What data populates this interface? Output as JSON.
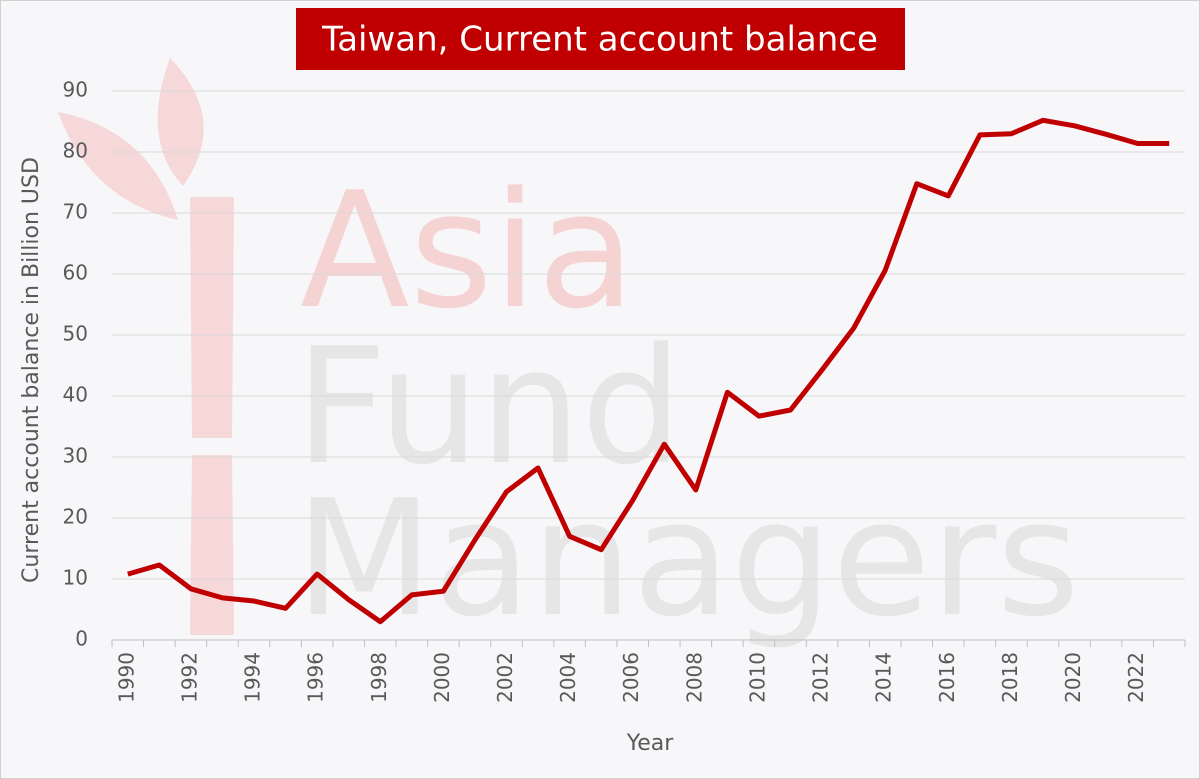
{
  "chart_data": {
    "type": "line",
    "title": "Taiwan, Current account balance",
    "x_label": "Year",
    "y_label": "Current account balance in Billion USD",
    "watermark": [
      "Asia",
      "Fund",
      "Managers"
    ],
    "categories": [
      "1990",
      null,
      "1992",
      null,
      "1994",
      null,
      "1996",
      null,
      "1998",
      null,
      "2000",
      null,
      "2002",
      null,
      "2004",
      null,
      "2006",
      null,
      "2008",
      null,
      "2010",
      null,
      "2012",
      null,
      "2014",
      null,
      "2016",
      null,
      "2018",
      null,
      "2020",
      null,
      "2022",
      null
    ],
    "series": [
      {
        "name": "Current account balance",
        "color": "#c00000",
        "values": [
          10.8,
          12.3,
          8.4,
          6.9,
          6.4,
          5.2,
          10.8,
          6.6,
          3.0,
          7.4,
          8.0,
          16.4,
          24.3,
          28.2,
          17.0,
          14.8,
          22.9,
          32.1,
          24.6,
          40.6,
          36.7,
          37.7,
          44.3,
          51.1,
          60.6,
          74.8,
          72.8,
          82.8,
          83.0,
          85.2,
          84.3,
          82.9,
          81.4,
          81.4
        ]
      }
    ],
    "ylim": [
      0,
      90
    ],
    "yticks": [
      0,
      10,
      20,
      30,
      40,
      50,
      60,
      70,
      80,
      90
    ],
    "grid": true
  }
}
